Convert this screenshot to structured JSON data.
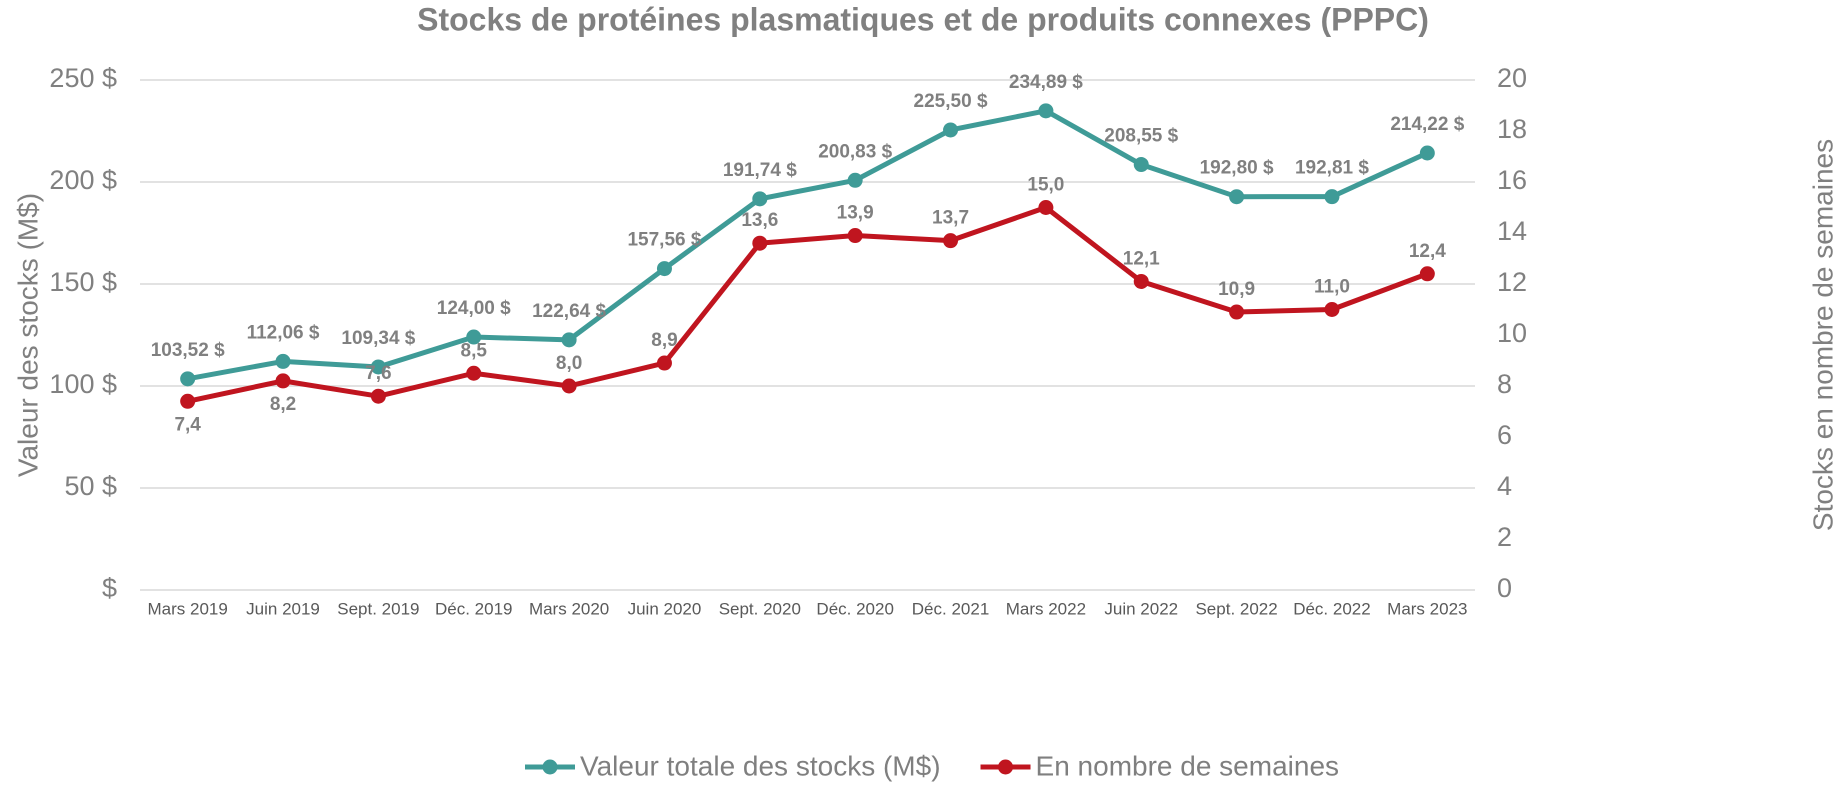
{
  "chart_data": {
    "type": "line",
    "title": "Stocks de protéines plasmatiques et de produits connexes (PPPC)",
    "ylabel": "Valeur des stocks (M$)",
    "y2label": "Stocks en nombre de semaines",
    "categories": [
      "Mars 2019",
      "Juin 2019",
      "Sept. 2019",
      "Déc. 2019",
      "Mars 2020",
      "Juin 2020",
      "Sept. 2020",
      "Déc. 2020",
      "Déc. 2021",
      "Mars 2022",
      "Juin 2022",
      "Sept. 2022",
      "Déc. 2022",
      "Mars 2023"
    ],
    "series": [
      {
        "name": "Valeur totale des stocks (M$)",
        "color": "#3f9b97",
        "values": [
          103.52,
          112.06,
          109.34,
          124.0,
          122.64,
          157.56,
          191.74,
          200.83,
          225.5,
          234.89,
          208.55,
          192.8,
          192.81,
          214.22
        ],
        "value_labels": [
          "103,52 $",
          "112,06 $",
          "109,34 $",
          "124,00 $",
          "122,64 $",
          "157,56 $",
          "191,74 $",
          "200,83 $",
          "225,50 $",
          "234,89 $",
          "208,55 $",
          "192,80 $",
          "192,81 $",
          "214,22 $"
        ]
      },
      {
        "name": "En nombre de semaines",
        "color": "#c0151f",
        "axis": "y2",
        "values": [
          7.4,
          8.2,
          7.6,
          8.5,
          8.0,
          8.9,
          13.6,
          13.9,
          13.7,
          15.0,
          12.1,
          10.9,
          11.0,
          12.4
        ],
        "value_labels": [
          "7,4",
          "8,2",
          "7,6",
          "8,5",
          "8,0",
          "8,9",
          "13,6",
          "13,9",
          "13,7",
          "15,0",
          "12,1",
          "10,9",
          "11,0",
          "12,4"
        ]
      }
    ],
    "ylim": [
      0,
      250
    ],
    "yticks": [
      {
        "value": 0,
        "label": "$"
      },
      {
        "value": 50,
        "label": "50 $"
      },
      {
        "value": 100,
        "label": "100 $"
      },
      {
        "value": 150,
        "label": "150 $"
      },
      {
        "value": 200,
        "label": "200 $"
      },
      {
        "value": 250,
        "label": "250 $"
      }
    ],
    "y2lim": [
      0,
      20
    ],
    "y2ticks": [
      0,
      2,
      4,
      6,
      8,
      10,
      12,
      14,
      16,
      18,
      20
    ],
    "grid": true,
    "legend": "bottom"
  }
}
